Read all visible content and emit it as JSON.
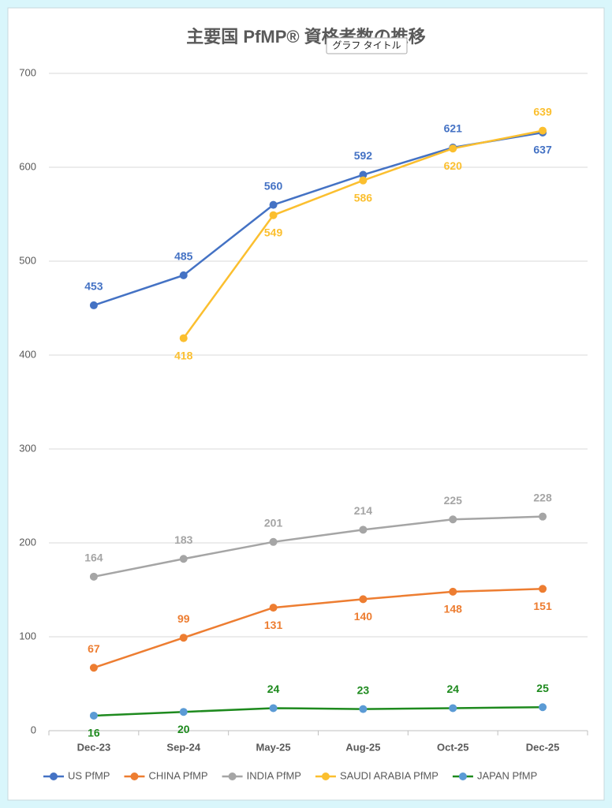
{
  "chart_data": {
    "type": "line",
    "title": "主要国 PfMP® 資格者数の推移",
    "tooltip": "グラフ タイトル",
    "categories": [
      "Dec-23",
      "Sep-24",
      "May-25",
      "Aug-25",
      "Oct-25",
      "Dec-25"
    ],
    "series": [
      {
        "name": "US PfMP",
        "color": "#4472c4",
        "values": [
          453,
          485,
          560,
          592,
          621,
          637
        ]
      },
      {
        "name": "CHINA PfMP",
        "color": "#ed7d31",
        "values": [
          67,
          99,
          131,
          140,
          148,
          151
        ]
      },
      {
        "name": "INDIA PfMP",
        "color": "#a5a5a5",
        "values": [
          164,
          183,
          201,
          214,
          225,
          228
        ]
      },
      {
        "name": "SAUDI ARABIA PfMP",
        "color": "#fbbf2f",
        "values": [
          null,
          418,
          549,
          586,
          620,
          639
        ]
      },
      {
        "name": "JAPAN PfMP",
        "color": "#1e8a1e",
        "marker_color": "#5b9bd5",
        "values": [
          16,
          20,
          24,
          23,
          24,
          25
        ]
      }
    ],
    "ylim": [
      0,
      700
    ],
    "yticks": [
      0,
      100,
      200,
      300,
      400,
      500,
      600,
      700
    ],
    "grid": true,
    "legend": "bottom"
  }
}
